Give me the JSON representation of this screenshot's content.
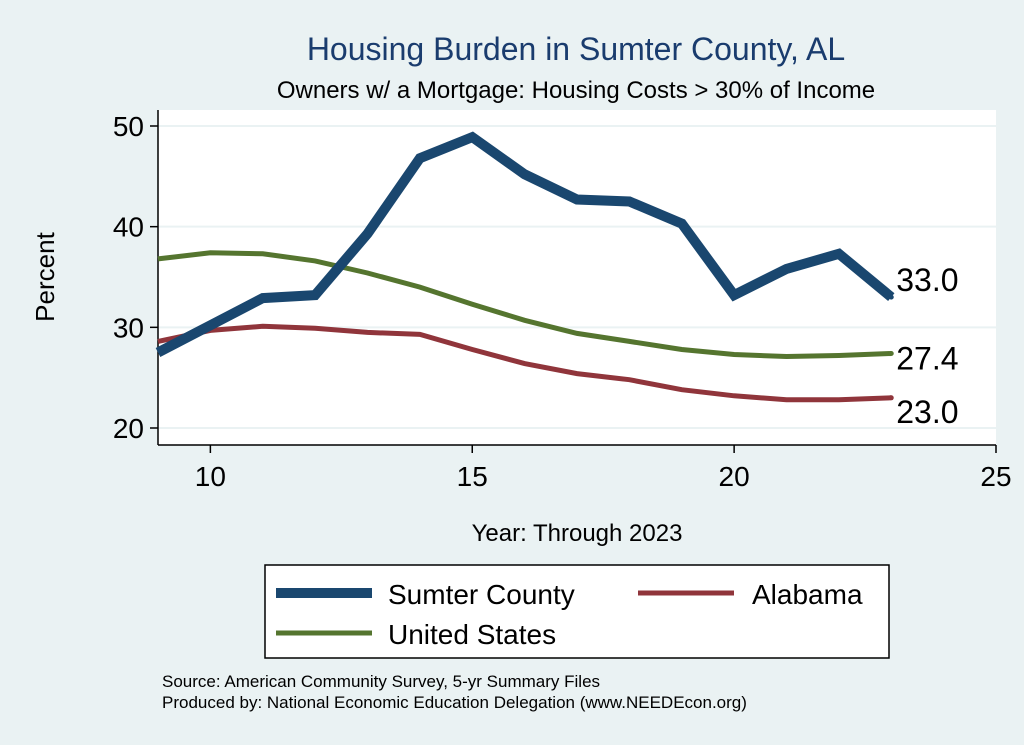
{
  "chart_data": {
    "type": "line",
    "title": "Housing Burden in Sumter County, AL",
    "subtitle": "Owners w/ a Mortgage: Housing Costs > 30% of Income",
    "xlabel": "Year: Through 2023",
    "ylabel": "Percent",
    "xlim": [
      9,
      25
    ],
    "ylim": [
      20,
      50
    ],
    "x_ticks": [
      "10",
      "15",
      "20",
      "25"
    ],
    "y_ticks": [
      "20",
      "30",
      "40",
      "50"
    ],
    "grid": true,
    "legend_position": "bottom",
    "series": [
      {
        "name": "Sumter County",
        "color": "#1a476f",
        "x": [
          9,
          10,
          11,
          12,
          13,
          14,
          15,
          16,
          17,
          18,
          19,
          20,
          21,
          22,
          23
        ],
        "values": [
          27.5,
          30.2,
          32.9,
          33.2,
          39.3,
          46.8,
          48.9,
          45.2,
          42.7,
          42.5,
          40.3,
          33.2,
          35.8,
          37.3,
          33.0
        ],
        "end_label": "33.0"
      },
      {
        "name": "Alabama",
        "color": "#90353b",
        "x": [
          9,
          10,
          11,
          12,
          13,
          14,
          15,
          16,
          17,
          18,
          19,
          20,
          21,
          22,
          23
        ],
        "values": [
          28.6,
          29.7,
          30.1,
          29.9,
          29.5,
          29.3,
          27.8,
          26.4,
          25.4,
          24.8,
          23.8,
          23.2,
          22.8,
          22.8,
          23.0
        ],
        "end_label": "23.0"
      },
      {
        "name": "United States",
        "color": "#55752f",
        "x": [
          9,
          10,
          11,
          12,
          13,
          14,
          15,
          16,
          17,
          18,
          19,
          20,
          21,
          22,
          23
        ],
        "values": [
          36.8,
          37.4,
          37.3,
          36.6,
          35.4,
          34.0,
          32.3,
          30.7,
          29.4,
          28.6,
          27.8,
          27.3,
          27.1,
          27.2,
          27.4
        ],
        "end_label": "27.4"
      }
    ]
  },
  "source": {
    "line1": "Source: American Community Survey, 5-yr Summary Files",
    "line2": "Produced by: National Economic Education Delegation (www.NEEDEcon.org)"
  }
}
